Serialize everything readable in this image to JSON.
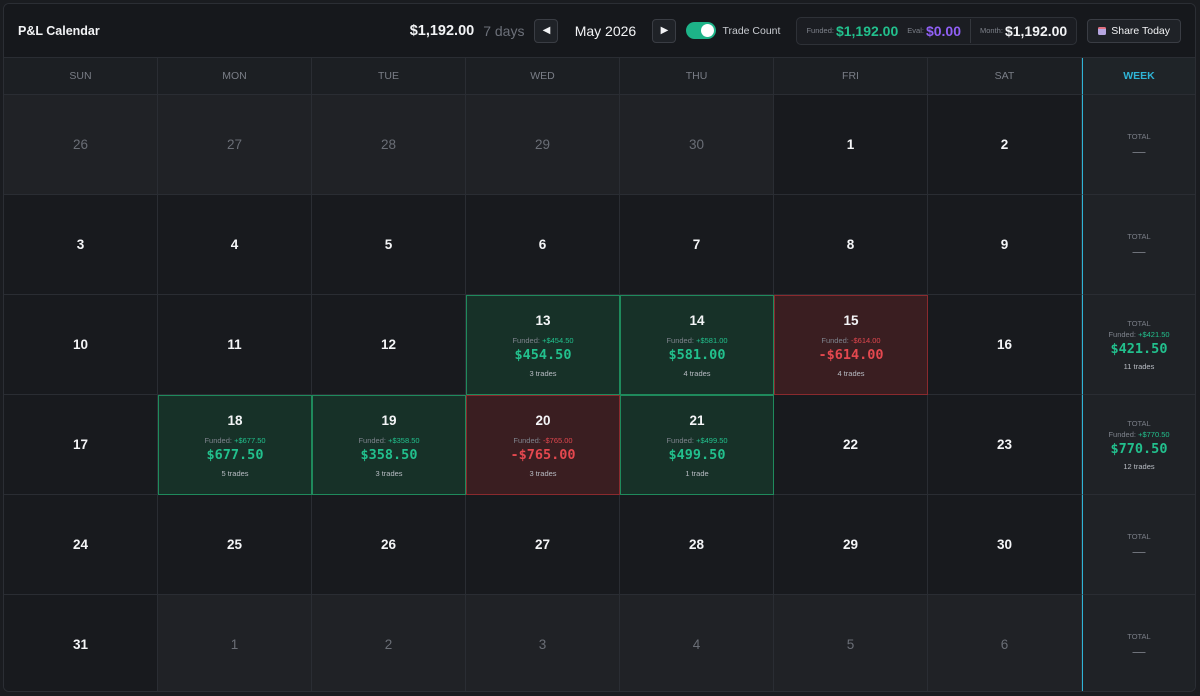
{
  "header": {
    "title": "P&L Calendar",
    "total": "$1,192.00",
    "days": "7 days",
    "month": "May 2026",
    "toggle_label": "Trade Count",
    "toggle_on": true,
    "funded_label": "Funded:",
    "funded_value": "$1,192.00",
    "eval_label": "Eval:",
    "eval_value": "$0.00",
    "month_label": "Month:",
    "month_value": "$1,192.00",
    "share_label": "Share Today",
    "prev_icon": "prev-month-icon",
    "next_icon": "next-month-icon"
  },
  "days_of_week": [
    "SUN",
    "MON",
    "TUE",
    "WED",
    "THU",
    "FRI",
    "SAT"
  ],
  "week_header": "WEEK",
  "colors": {
    "positive": "#22c08d",
    "negative": "#e5484f",
    "accent": "#2fb4d6",
    "eval": "#9060f5"
  },
  "weeks": [
    {
      "days": [
        {
          "d": "26",
          "outside": true
        },
        {
          "d": "27",
          "outside": true
        },
        {
          "d": "28",
          "outside": true
        },
        {
          "d": "29",
          "outside": true
        },
        {
          "d": "30",
          "outside": true
        },
        {
          "d": "1"
        },
        {
          "d": "2"
        }
      ],
      "total": {
        "label": "TOTAL",
        "value": "—"
      }
    },
    {
      "days": [
        {
          "d": "3"
        },
        {
          "d": "4"
        },
        {
          "d": "5"
        },
        {
          "d": "6"
        },
        {
          "d": "7"
        },
        {
          "d": "8"
        },
        {
          "d": "9"
        }
      ],
      "total": {
        "label": "TOTAL",
        "value": "—"
      }
    },
    {
      "days": [
        {
          "d": "10"
        },
        {
          "d": "11"
        },
        {
          "d": "12"
        },
        {
          "d": "13",
          "status": "pos",
          "funded_label": "Funded:",
          "funded": "+$454.50",
          "pnl": "$454.50",
          "trades": "3 trades"
        },
        {
          "d": "14",
          "status": "pos",
          "funded_label": "Funded:",
          "funded": "+$581.00",
          "pnl": "$581.00",
          "trades": "4 trades"
        },
        {
          "d": "15",
          "status": "neg",
          "funded_label": "Funded:",
          "funded": "-$614.00",
          "pnl": "-$614.00",
          "trades": "4 trades"
        },
        {
          "d": "16"
        }
      ],
      "total": {
        "label": "TOTAL",
        "funded_label": "Funded:",
        "funded": "+$421.50",
        "value": "$421.50",
        "trades": "11 trades"
      }
    },
    {
      "days": [
        {
          "d": "17"
        },
        {
          "d": "18",
          "status": "pos",
          "funded_label": "Funded:",
          "funded": "+$677.50",
          "pnl": "$677.50",
          "trades": "5 trades"
        },
        {
          "d": "19",
          "status": "pos",
          "funded_label": "Funded:",
          "funded": "+$358.50",
          "pnl": "$358.50",
          "trades": "3 trades"
        },
        {
          "d": "20",
          "status": "neg",
          "funded_label": "Funded:",
          "funded": "-$765.00",
          "pnl": "-$765.00",
          "trades": "3 trades"
        },
        {
          "d": "21",
          "status": "pos",
          "funded_label": "Funded:",
          "funded": "+$499.50",
          "pnl": "$499.50",
          "trades": "1 trade"
        },
        {
          "d": "22"
        },
        {
          "d": "23"
        }
      ],
      "total": {
        "label": "TOTAL",
        "funded_label": "Funded:",
        "funded": "+$770.50",
        "value": "$770.50",
        "trades": "12 trades"
      }
    },
    {
      "days": [
        {
          "d": "24"
        },
        {
          "d": "25"
        },
        {
          "d": "26"
        },
        {
          "d": "27"
        },
        {
          "d": "28"
        },
        {
          "d": "29"
        },
        {
          "d": "30"
        }
      ],
      "total": {
        "label": "TOTAL",
        "value": "—"
      }
    },
    {
      "days": [
        {
          "d": "31"
        },
        {
          "d": "1",
          "outside": true
        },
        {
          "d": "2",
          "outside": true
        },
        {
          "d": "3",
          "outside": true
        },
        {
          "d": "4",
          "outside": true
        },
        {
          "d": "5",
          "outside": true
        },
        {
          "d": "6",
          "outside": true
        }
      ],
      "total": {
        "label": "TOTAL",
        "value": "—"
      }
    }
  ]
}
